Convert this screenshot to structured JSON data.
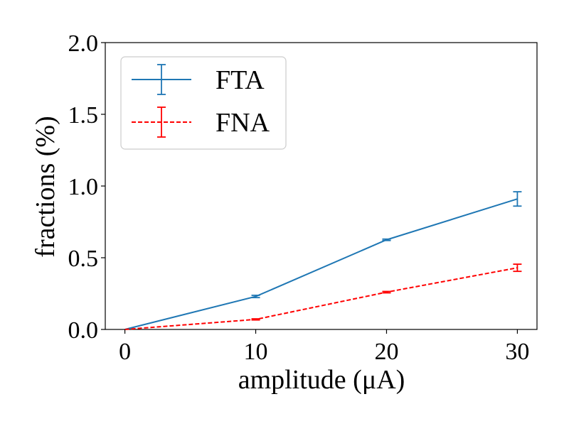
{
  "chart_data": {
    "type": "line",
    "title": "",
    "xlabel": "amplitude (μA)",
    "ylabel": "fractions (%)",
    "xlim": [
      -1.5,
      31.5
    ],
    "ylim": [
      0,
      2.0
    ],
    "x": [
      0,
      10,
      20,
      30
    ],
    "xticks": [
      0,
      10,
      20,
      30
    ],
    "xtick_labels": [
      "0",
      "10",
      "20",
      "30"
    ],
    "yticks": [
      0,
      0.5,
      1.0,
      1.5,
      2.0
    ],
    "ytick_labels": [
      "0.0",
      "0.5",
      "1.0",
      "1.5",
      "2.0"
    ],
    "grid": false,
    "legend_position": "top-left",
    "series": [
      {
        "name": "FTA",
        "values": [
          0.0,
          0.23,
          0.625,
          0.91
        ],
        "error": [
          0.0,
          0.008,
          0.005,
          0.05
        ],
        "color": "#1f77b4",
        "line_style": "solid"
      },
      {
        "name": "FNA",
        "values": [
          0.0,
          0.07,
          0.26,
          0.43
        ],
        "error": [
          0.0,
          0.004,
          0.005,
          0.025
        ],
        "color": "#ff0000",
        "line_style": "dashed"
      }
    ]
  }
}
